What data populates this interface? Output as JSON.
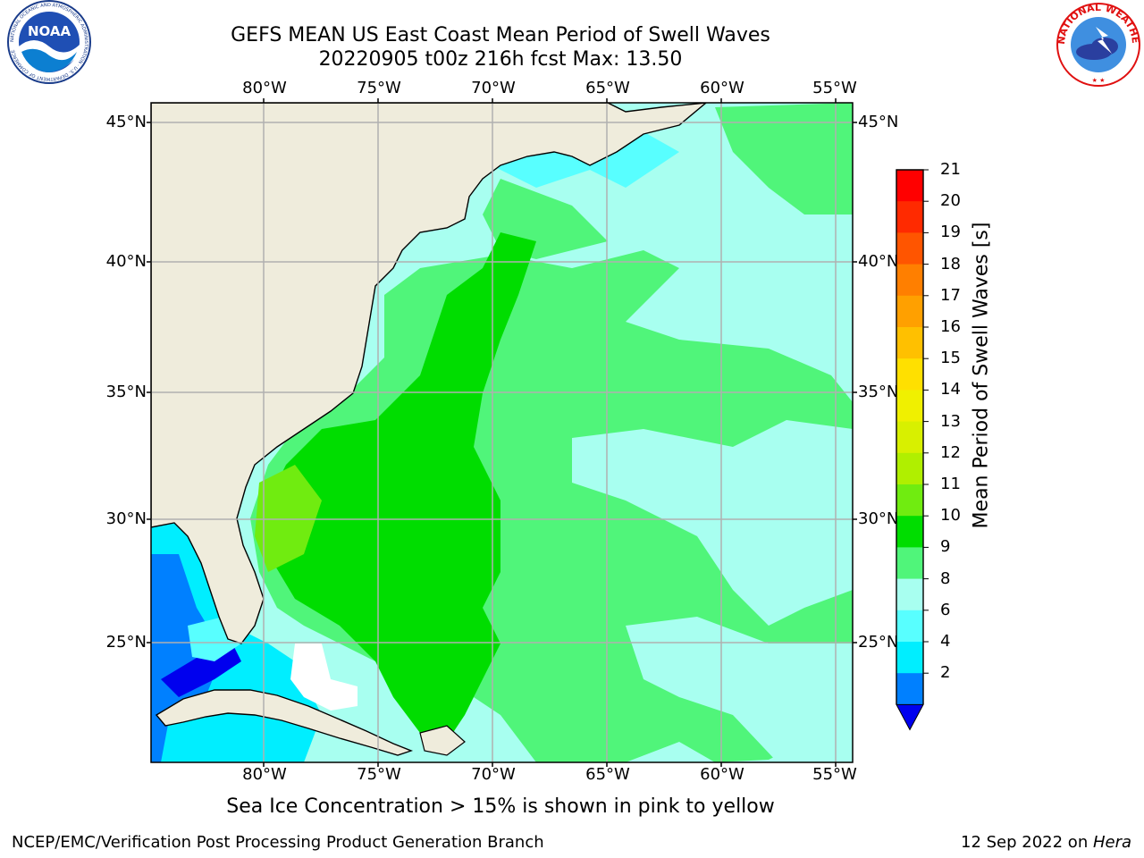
{
  "title": {
    "line1": "GEFS MEAN US East Coast Mean Period of Swell Waves",
    "line2": "20220905 t00z 216h fcst   Max: 13.50"
  },
  "logos": {
    "noaa": {
      "text": "NOAA",
      "ring": "NATIONAL OCEANIC AND ATMOSPHERIC ADMINISTRATION · U.S. DEPARTMENT OF COMMERCE"
    },
    "nws": {
      "ring": "NATIONAL WEATHER SERVICE"
    }
  },
  "map": {
    "lon_labels": [
      "80°W",
      "75°W",
      "70°W",
      "65°W",
      "60°W",
      "55°W"
    ],
    "lat_labels": [
      "45°N",
      "40°N",
      "35°N",
      "30°N",
      "25°N"
    ],
    "lon_range": [
      -85,
      -54.5
    ],
    "lat_range": [
      20.5,
      46
    ],
    "grid": true,
    "land_color": "#efecdc",
    "grid_color": "#b0b0b0"
  },
  "colorbar": {
    "title": "Mean Period of Swell Waves [s]",
    "ticks": [
      "21",
      "20",
      "19",
      "18",
      "17",
      "16",
      "15",
      "14",
      "13",
      "12",
      "11",
      "10",
      "9",
      "8",
      "6",
      "4",
      "2"
    ],
    "colors_top_to_bottom": [
      "#ff0000",
      "#ff2a00",
      "#ff5500",
      "#ff7f00",
      "#ffa000",
      "#ffc000",
      "#ffe000",
      "#f0f000",
      "#d8f000",
      "#b0ef00",
      "#70ec10",
      "#00dd00",
      "#50f57a",
      "#a8fff0",
      "#58ffff",
      "#00eeff",
      "#0080ff"
    ],
    "under_color": "#0000ee"
  },
  "notes": {
    "ice": "Sea Ice Concentration > 15% is shown in pink to yellow",
    "footer_left": "NCEP/EMC/Verification Post Processing Product Generation Branch",
    "footer_date": "12 Sep 2022 on ",
    "footer_host": "Hera"
  }
}
